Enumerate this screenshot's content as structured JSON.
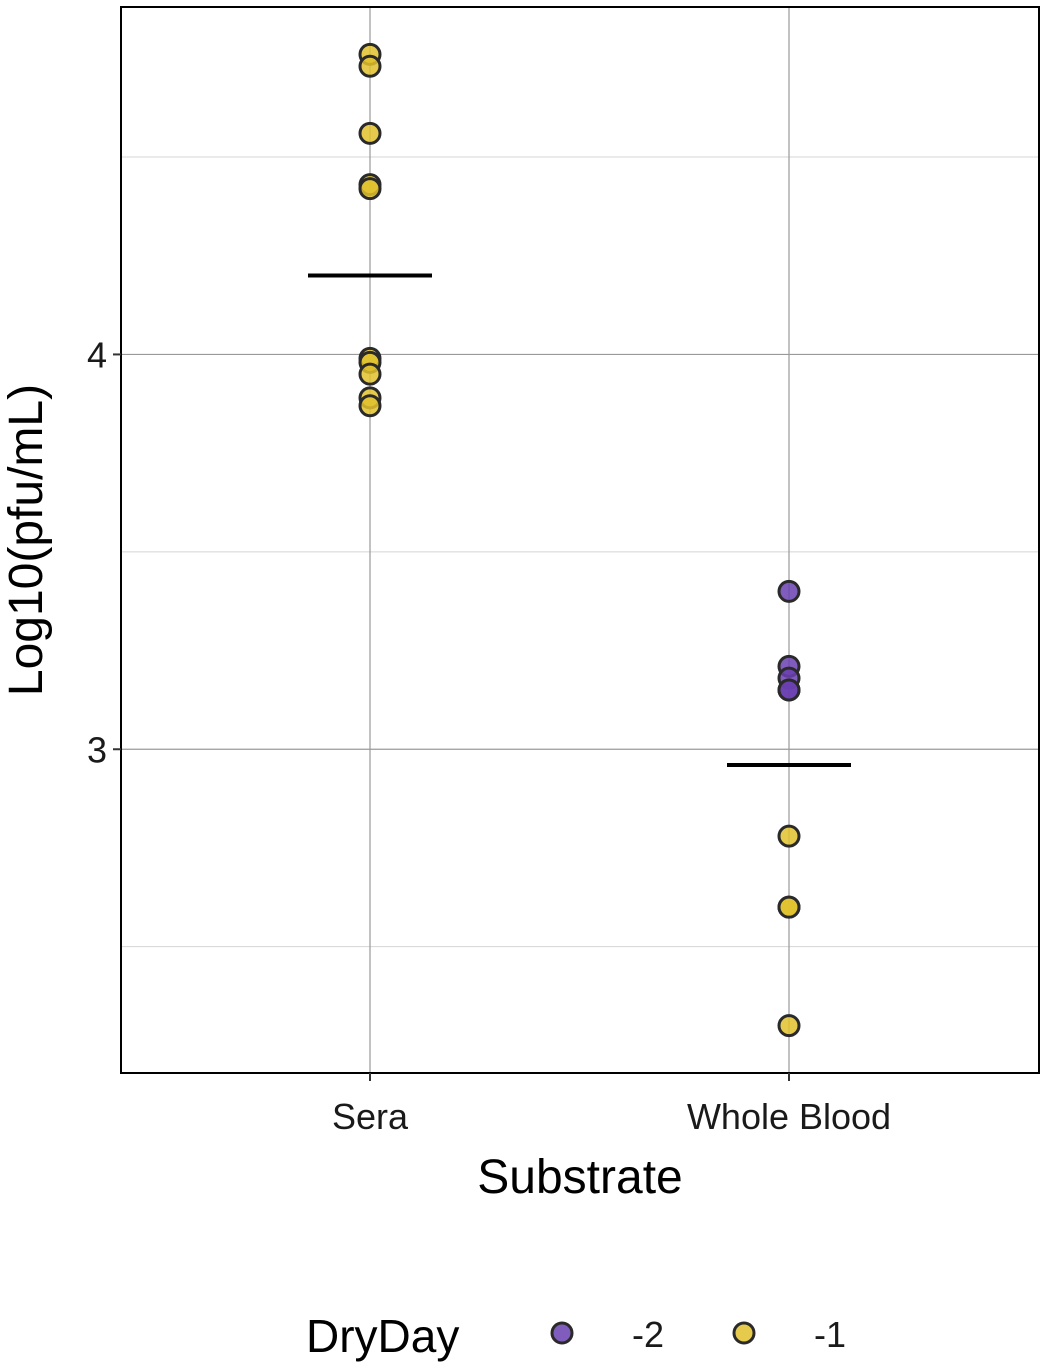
{
  "chart_data": {
    "type": "scatter",
    "xlabel": "Substrate",
    "ylabel": "Log10(pfu/mL)",
    "categories": [
      "Sera",
      "Whole Blood"
    ],
    "ylim": [
      2.18,
      4.88
    ],
    "y_ticks": [
      3,
      4
    ],
    "y_tick_labels": [
      "3",
      "4"
    ],
    "grid": true,
    "legend": {
      "title": "DryDay",
      "position": "bottom",
      "entries": [
        {
          "label": "-2",
          "color": "#6a3fb0"
        },
        {
          "label": "-1",
          "color": "#e1c12d"
        }
      ]
    },
    "series": [
      {
        "name": "-2",
        "color": "#6a3fb0",
        "points": [
          {
            "x": "Whole Blood",
            "y": 3.4
          },
          {
            "x": "Whole Blood",
            "y": 3.21
          },
          {
            "x": "Whole Blood",
            "y": 3.18
          },
          {
            "x": "Whole Blood",
            "y": 3.15
          },
          {
            "x": "Whole Blood",
            "y": 3.15
          }
        ]
      },
      {
        "name": "-1",
        "color": "#e1c12d",
        "points": [
          {
            "x": "Sera",
            "y": 4.76
          },
          {
            "x": "Sera",
            "y": 4.73
          },
          {
            "x": "Sera",
            "y": 4.56
          },
          {
            "x": "Sera",
            "y": 4.43
          },
          {
            "x": "Sera",
            "y": 4.42
          },
          {
            "x": "Sera",
            "y": 3.99
          },
          {
            "x": "Sera",
            "y": 3.98
          },
          {
            "x": "Sera",
            "y": 3.95
          },
          {
            "x": "Sera",
            "y": 3.89
          },
          {
            "x": "Sera",
            "y": 3.87
          },
          {
            "x": "Whole Blood",
            "y": 2.78
          },
          {
            "x": "Whole Blood",
            "y": 2.6
          },
          {
            "x": "Whole Blood",
            "y": 2.6
          },
          {
            "x": "Whole Blood",
            "y": 2.3
          }
        ]
      }
    ],
    "means": [
      {
        "x": "Sera",
        "y": 4.2
      },
      {
        "x": "Whole Blood",
        "y": 2.96
      }
    ]
  }
}
